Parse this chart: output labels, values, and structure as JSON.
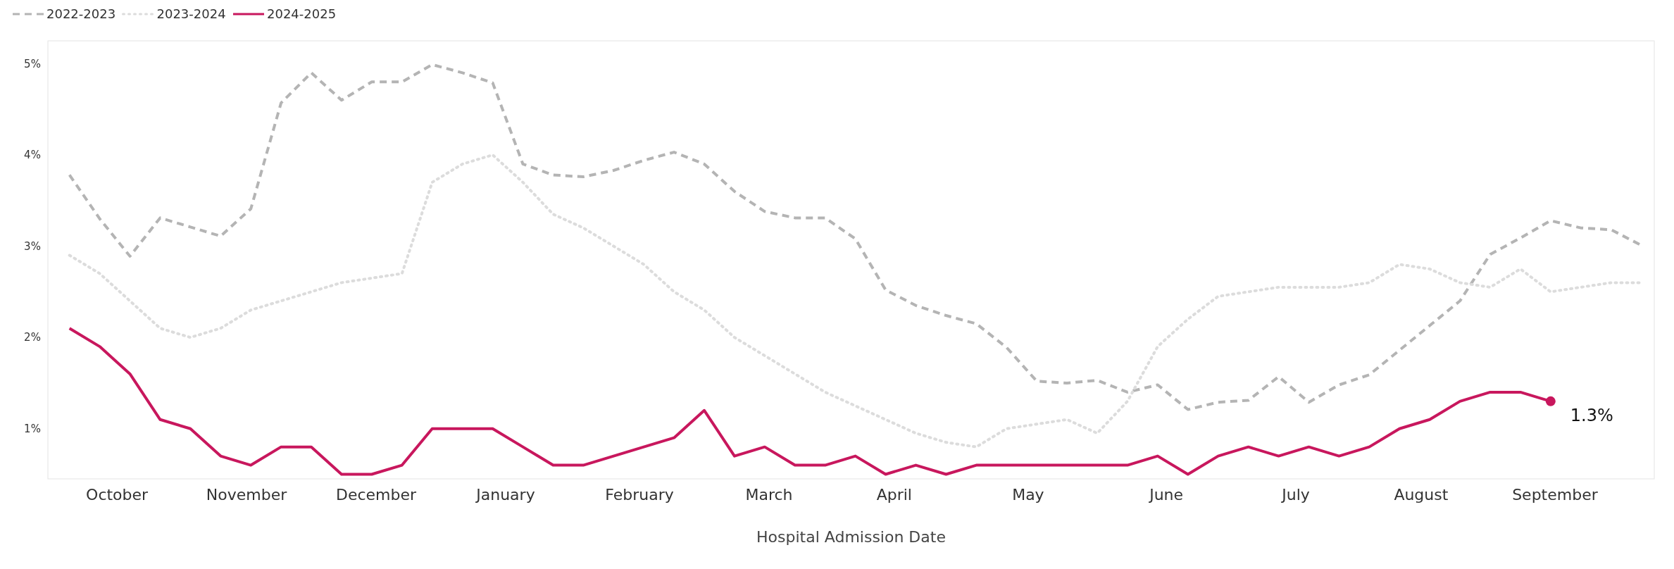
{
  "chart_data": {
    "type": "line",
    "xlabel": "Hospital Admission Date",
    "x": [
      "2024-10-05",
      "2024-10-12",
      "2024-10-19",
      "2024-10-26",
      "2024-11-02",
      "2024-11-09",
      "2024-11-16",
      "2024-11-23",
      "2024-11-30",
      "2024-12-07",
      "2024-12-14",
      "2024-12-21",
      "2024-12-28",
      "2025-01-04",
      "2025-01-11",
      "2025-01-18",
      "2025-01-25",
      "2025-02-01",
      "2025-02-08",
      "2025-02-15",
      "2025-02-22",
      "2025-03-01",
      "2025-03-08",
      "2025-03-15",
      "2025-03-22",
      "2025-03-29",
      "2025-04-05",
      "2025-04-12",
      "2025-04-19",
      "2025-04-26",
      "2025-05-03",
      "2025-05-10",
      "2025-05-17",
      "2025-05-24",
      "2025-05-31",
      "2025-06-07",
      "2025-06-14",
      "2025-06-21",
      "2025-06-28",
      "2025-07-05",
      "2025-07-12",
      "2025-07-19",
      "2025-07-26",
      "2025-08-02",
      "2025-08-09",
      "2025-08-16",
      "2025-08-23",
      "2025-08-30",
      "2025-09-06",
      "2025-09-13",
      "2025-09-20",
      "2025-09-27",
      "2025-10-04"
    ],
    "xlim": [
      "2024-09-30",
      "2025-10-07"
    ],
    "xticks": [
      {
        "value": "2024-10-16",
        "label": "October"
      },
      {
        "value": "2024-11-15",
        "label": "November"
      },
      {
        "value": "2024-12-15",
        "label": "December"
      },
      {
        "value": "2025-01-14",
        "label": "January"
      },
      {
        "value": "2025-02-14",
        "label": "February"
      },
      {
        "value": "2025-03-16",
        "label": "March"
      },
      {
        "value": "2025-04-14",
        "label": "April"
      },
      {
        "value": "2025-05-15",
        "label": "May"
      },
      {
        "value": "2025-06-16",
        "label": "June"
      },
      {
        "value": "2025-07-16",
        "label": "July"
      },
      {
        "value": "2025-08-14",
        "label": "August"
      },
      {
        "value": "2025-09-14",
        "label": "September"
      }
    ],
    "ylim": [
      0.45,
      5.25
    ],
    "yticks": [
      {
        "value": 1,
        "label": "1%"
      },
      {
        "value": 2,
        "label": "2%"
      },
      {
        "value": 3,
        "label": "3%"
      },
      {
        "value": 4,
        "label": "4%"
      },
      {
        "value": 5,
        "label": "5%"
      }
    ],
    "grid": false,
    "legend": "top left",
    "series": [
      {
        "name": "2022-2023",
        "color": "#b4b4b4",
        "line_style": "dashed",
        "values": [
          3.78,
          3.3,
          2.89,
          3.31,
          3.21,
          3.11,
          3.41,
          4.57,
          4.9,
          4.6,
          4.8,
          4.8,
          4.99,
          4.9,
          4.79,
          3.9,
          3.78,
          3.76,
          3.83,
          3.94,
          4.03,
          3.9,
          3.6,
          3.38,
          3.31,
          3.31,
          3.08,
          2.52,
          2.35,
          2.24,
          2.15,
          1.89,
          1.52,
          1.5,
          1.53,
          1.4,
          1.48,
          1.21,
          1.29,
          1.31,
          1.57,
          1.29,
          1.48,
          1.59,
          1.86,
          2.13,
          2.4,
          2.91,
          3.09,
          3.28,
          3.2,
          3.18,
          3.01
        ]
      },
      {
        "name": "2023-2024",
        "color": "#dcdcdc",
        "line_style": "dotted",
        "values": [
          2.9,
          2.7,
          2.4,
          2.1,
          2.0,
          2.1,
          2.3,
          2.4,
          2.5,
          2.6,
          2.65,
          2.7,
          3.7,
          3.9,
          4.0,
          3.7,
          3.35,
          3.2,
          3.0,
          2.8,
          2.5,
          2.3,
          2.0,
          1.8,
          1.6,
          1.4,
          1.25,
          1.1,
          0.95,
          0.85,
          0.8,
          1.0,
          1.05,
          1.1,
          0.95,
          1.3,
          1.9,
          2.2,
          2.45,
          2.5,
          2.55,
          2.55,
          2.55,
          2.6,
          2.8,
          2.75,
          2.6,
          2.55,
          2.75,
          2.5,
          2.55,
          2.6,
          2.6
        ]
      },
      {
        "name": "2024-2025",
        "color": "#c8175d",
        "line_style": "solid",
        "values": [
          2.1,
          1.9,
          1.6,
          1.1,
          1.0,
          0.7,
          0.6,
          0.8,
          0.8,
          0.5,
          0.5,
          0.6,
          1.0,
          1.0,
          1.0,
          0.8,
          0.6,
          0.6,
          0.7,
          0.8,
          0.9,
          1.2,
          0.7,
          0.8,
          0.6,
          0.6,
          0.7,
          0.5,
          0.6,
          0.5,
          0.6,
          0.6,
          0.6,
          0.6,
          0.6,
          0.6,
          0.7,
          0.5,
          0.7,
          0.8,
          0.7,
          0.8,
          0.7,
          0.8,
          1.0,
          1.1,
          1.3,
          1.4,
          1.4,
          1.3,
          null,
          null,
          null
        ]
      }
    ],
    "annotations": [
      {
        "text": "1.3%",
        "x": "2025-09-13",
        "y": 1.3
      }
    ]
  }
}
